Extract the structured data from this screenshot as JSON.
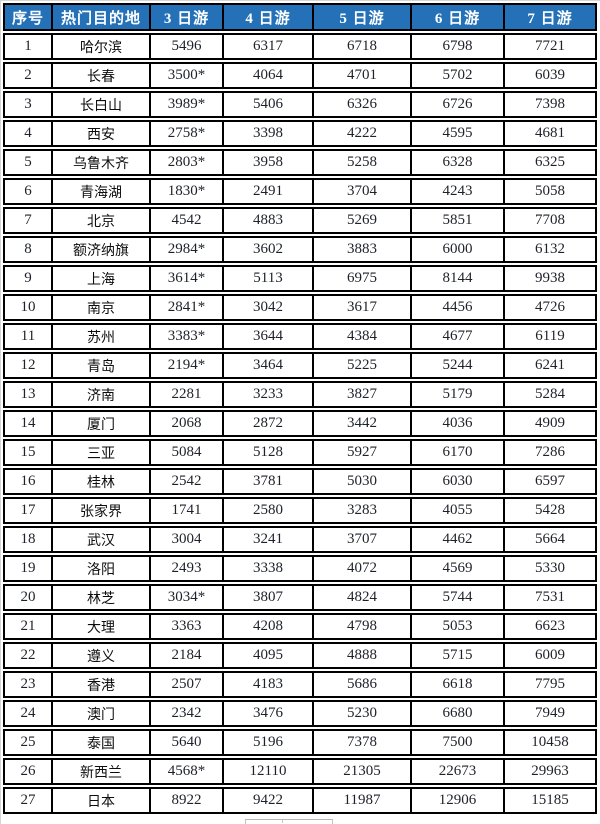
{
  "colors": {
    "header_bg": "#2471B8",
    "header_text": "#FFFFFF",
    "border": "#000000",
    "body_text": "#1D2129"
  },
  "table": {
    "headers": [
      "序号",
      "热门目的地",
      "3 日游",
      "4 日游",
      "5 日游",
      "6 日游",
      "7 日游"
    ],
    "rows": [
      [
        "1",
        "哈尔滨",
        "5496",
        "6317",
        "6718",
        "6798",
        "7721"
      ],
      [
        "2",
        "长春",
        "3500*",
        "4064",
        "4701",
        "5702",
        "6039"
      ],
      [
        "3",
        "长白山",
        "3989*",
        "5406",
        "6326",
        "6726",
        "7398"
      ],
      [
        "4",
        "西安",
        "2758*",
        "3398",
        "4222",
        "4595",
        "4681"
      ],
      [
        "5",
        "乌鲁木齐",
        "2803*",
        "3958",
        "5258",
        "6328",
        "6325"
      ],
      [
        "6",
        "青海湖",
        "1830*",
        "2491",
        "3704",
        "4243",
        "5058"
      ],
      [
        "7",
        "北京",
        "4542",
        "4883",
        "5269",
        "5851",
        "7708"
      ],
      [
        "8",
        "额济纳旗",
        "2984*",
        "3602",
        "3883",
        "6000",
        "6132"
      ],
      [
        "9",
        "上海",
        "3614*",
        "5113",
        "6975",
        "8144",
        "9938"
      ],
      [
        "10",
        "南京",
        "2841*",
        "3042",
        "3617",
        "4456",
        "4726"
      ],
      [
        "11",
        "苏州",
        "3383*",
        "3644",
        "4384",
        "4677",
        "6119"
      ],
      [
        "12",
        "青岛",
        "2194*",
        "3464",
        "5225",
        "5244",
        "6241"
      ],
      [
        "13",
        "济南",
        "2281",
        "3233",
        "3827",
        "5179",
        "5284"
      ],
      [
        "14",
        "厦门",
        "2068",
        "2872",
        "3442",
        "4036",
        "4909"
      ],
      [
        "15",
        "三亚",
        "5084",
        "5128",
        "5927",
        "6170",
        "7286"
      ],
      [
        "16",
        "桂林",
        "2542",
        "3781",
        "5030",
        "6030",
        "6597"
      ],
      [
        "17",
        "张家界",
        "1741",
        "2580",
        "3283",
        "4055",
        "5428"
      ],
      [
        "18",
        "武汉",
        "3004",
        "3241",
        "3707",
        "4462",
        "5664"
      ],
      [
        "19",
        "洛阳",
        "2493",
        "3338",
        "4072",
        "4569",
        "5330"
      ],
      [
        "20",
        "林芝",
        "3034*",
        "3807",
        "4824",
        "5744",
        "7531"
      ],
      [
        "21",
        "大理",
        "3363",
        "4208",
        "4798",
        "5053",
        "6623"
      ],
      [
        "22",
        "遵义",
        "2184",
        "4095",
        "4888",
        "5715",
        "6009"
      ],
      [
        "23",
        "香港",
        "2507",
        "4183",
        "5686",
        "6618",
        "7795"
      ],
      [
        "24",
        "澳门",
        "2342",
        "3476",
        "5230",
        "6680",
        "7949"
      ],
      [
        "25",
        "泰国",
        "5640",
        "5196",
        "7378",
        "7500",
        "10458"
      ],
      [
        "26",
        "新西兰",
        "4568*",
        "12110",
        "21305",
        "22673",
        "29963"
      ],
      [
        "27",
        "日本",
        "8922",
        "9422",
        "11987",
        "12906",
        "15185"
      ]
    ]
  }
}
